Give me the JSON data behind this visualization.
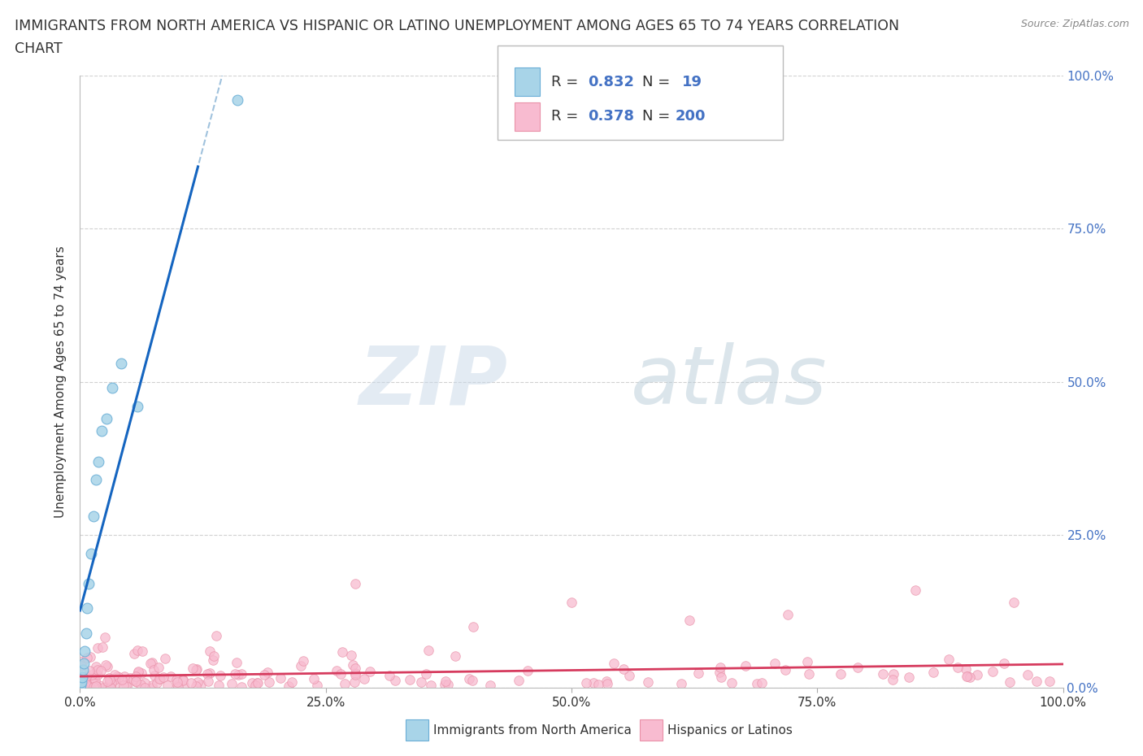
{
  "title_line1": "IMMIGRANTS FROM NORTH AMERICA VS HISPANIC OR LATINO UNEMPLOYMENT AMONG AGES 65 TO 74 YEARS CORRELATION",
  "title_line2": "CHART",
  "source": "Source: ZipAtlas.com",
  "ylabel": "Unemployment Among Ages 65 to 74 years",
  "legend_label_blue": "Immigrants from North America",
  "legend_label_pink": "Hispanics or Latinos",
  "xlim": [
    0,
    1.0
  ],
  "ylim": [
    0,
    1.0
  ],
  "blue_color": "#a8d4e8",
  "blue_edge": "#6aaed6",
  "pink_color": "#f8bbd0",
  "pink_edge": "#e991a8",
  "trend_blue": "#1565c0",
  "trend_pink": "#d63b5e",
  "R_blue": "0.832",
  "N_blue": "19",
  "R_pink": "0.378",
  "N_pink": "200",
  "watermark_zip": "ZIP",
  "watermark_atlas": "atlas",
  "background_color": "#ffffff",
  "grid_color": "#cccccc",
  "ytick_labels": [
    "0.0%",
    "25.0%",
    "50.0%",
    "75.0%",
    "100.0%"
  ],
  "ytick_vals": [
    0,
    0.25,
    0.5,
    0.75,
    1.0
  ],
  "xtick_labels": [
    "0.0%",
    "25.0%",
    "50.0%",
    "75.0%",
    "100.0%"
  ],
  "xtick_vals": [
    0,
    0.25,
    0.5,
    0.75,
    1.0
  ],
  "text_color_black": "#333333",
  "text_color_blue": "#4472c4",
  "source_color": "#888888"
}
